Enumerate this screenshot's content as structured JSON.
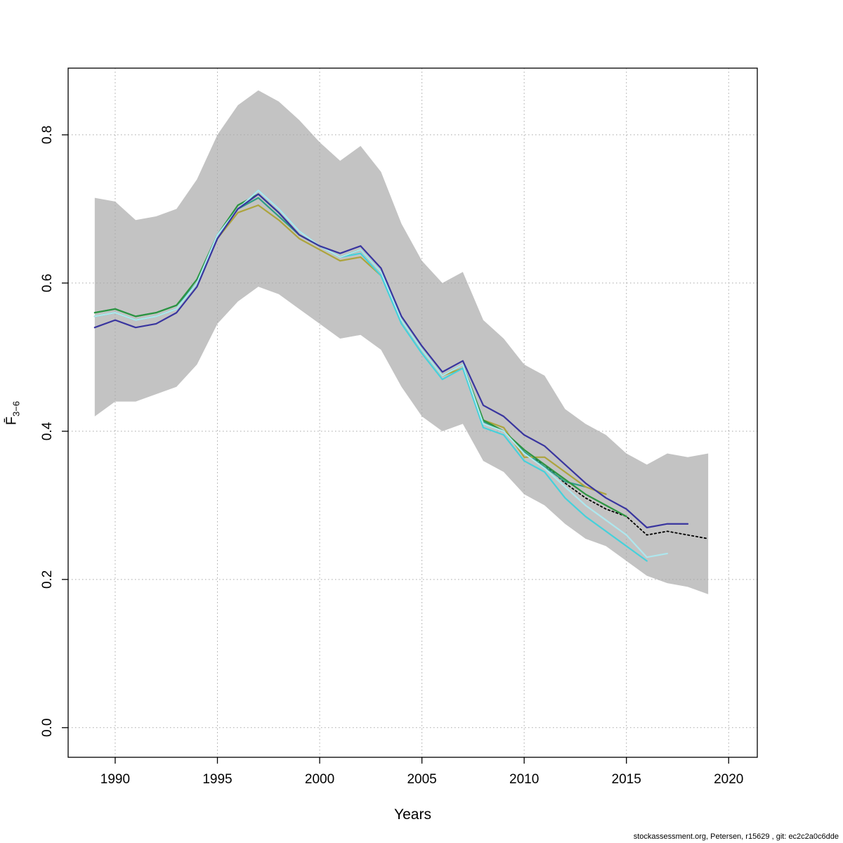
{
  "footer": "stockassessment.org, Petersen, r15629 , git: ec2c2a0c6dde",
  "chart_data": {
    "type": "line",
    "title": "",
    "xlabel": "Years",
    "ylabel_base": "F̄",
    "ylabel_sub": "3−6",
    "xlim": [
      1987.7,
      2021.4
    ],
    "ylim": [
      -0.04,
      0.89
    ],
    "xticks": [
      1990,
      1995,
      2000,
      2005,
      2010,
      2015,
      2020
    ],
    "yticks": [
      0.0,
      0.2,
      0.4,
      0.6,
      0.8
    ],
    "ytick_labels": [
      "0.0",
      "0.2",
      "0.4",
      "0.6",
      "0.8"
    ],
    "grid": true,
    "grid_color": "#a8a8a8",
    "band": {
      "name": "confidence-band",
      "color": "#c3c3c3",
      "start_year": 1989,
      "lower": [
        0.42,
        0.44,
        0.44,
        0.45,
        0.46,
        0.49,
        0.545,
        0.575,
        0.595,
        0.585,
        0.565,
        0.545,
        0.525,
        0.53,
        0.51,
        0.46,
        0.42,
        0.4,
        0.41,
        0.36,
        0.345,
        0.315,
        0.3,
        0.275,
        0.255,
        0.245,
        0.225,
        0.205,
        0.195,
        0.19,
        0.18
      ],
      "upper": [
        0.715,
        0.71,
        0.685,
        0.69,
        0.7,
        0.74,
        0.8,
        0.84,
        0.86,
        0.845,
        0.82,
        0.79,
        0.765,
        0.785,
        0.75,
        0.68,
        0.63,
        0.6,
        0.615,
        0.55,
        0.525,
        0.49,
        0.475,
        0.43,
        0.41,
        0.395,
        0.37,
        0.355,
        0.37,
        0.365,
        0.37
      ]
    },
    "series": [
      {
        "name": "base-run-2019",
        "color": "#000000",
        "style": "dotted",
        "start_year": 1989,
        "values": [
          0.555,
          0.56,
          0.55,
          0.555,
          0.565,
          0.6,
          0.665,
          0.7,
          0.72,
          0.695,
          0.665,
          0.65,
          0.635,
          0.645,
          0.615,
          0.55,
          0.51,
          0.475,
          0.49,
          0.41,
          0.4,
          0.37,
          0.355,
          0.33,
          0.31,
          0.295,
          0.285,
          0.26,
          0.265,
          0.26,
          0.255
        ]
      },
      {
        "name": "retro-peel-2013",
        "color": "#2f9d87",
        "style": "solid",
        "start_year": 1989,
        "values": [
          0.56,
          0.565,
          0.555,
          0.56,
          0.57,
          0.6,
          0.665,
          0.7,
          0.715,
          0.69,
          0.665,
          0.65,
          0.635,
          0.645,
          0.615,
          0.55,
          0.51,
          0.475,
          0.49,
          0.413,
          0.4,
          0.372,
          0.352,
          0.332,
          0.325
        ]
      },
      {
        "name": "retro-peel-2014",
        "color": "#ada43c",
        "style": "solid",
        "start_year": 1989,
        "values": [
          0.555,
          0.56,
          0.55,
          0.555,
          0.565,
          0.6,
          0.66,
          0.695,
          0.705,
          0.685,
          0.66,
          0.645,
          0.63,
          0.635,
          0.61,
          0.55,
          0.51,
          0.475,
          0.485,
          0.415,
          0.405,
          0.365,
          0.365,
          0.345,
          0.325,
          0.315
        ]
      },
      {
        "name": "retro-peel-2015",
        "color": "#2c9440",
        "style": "solid",
        "start_year": 1989,
        "values": [
          0.56,
          0.565,
          0.555,
          0.56,
          0.57,
          0.605,
          0.665,
          0.705,
          0.72,
          0.695,
          0.665,
          0.65,
          0.635,
          0.645,
          0.615,
          0.55,
          0.51,
          0.475,
          0.49,
          0.415,
          0.4,
          0.375,
          0.355,
          0.335,
          0.315,
          0.3,
          0.285
        ]
      },
      {
        "name": "retro-peel-2016",
        "color": "#45d1db",
        "style": "solid",
        "start_year": 1989,
        "values": [
          0.555,
          0.56,
          0.55,
          0.555,
          0.565,
          0.6,
          0.665,
          0.7,
          0.725,
          0.7,
          0.67,
          0.65,
          0.635,
          0.64,
          0.61,
          0.545,
          0.505,
          0.47,
          0.485,
          0.405,
          0.395,
          0.36,
          0.345,
          0.31,
          0.285,
          0.265,
          0.245,
          0.225
        ]
      },
      {
        "name": "retro-peel-2017",
        "color": "#aee7ee",
        "style": "solid",
        "start_year": 1989,
        "values": [
          0.555,
          0.56,
          0.55,
          0.555,
          0.565,
          0.6,
          0.665,
          0.7,
          0.725,
          0.7,
          0.67,
          0.65,
          0.635,
          0.645,
          0.615,
          0.55,
          0.51,
          0.475,
          0.49,
          0.41,
          0.4,
          0.37,
          0.35,
          0.325,
          0.3,
          0.28,
          0.26,
          0.23,
          0.235
        ]
      },
      {
        "name": "retro-peel-2018",
        "color": "#39359f",
        "style": "solid",
        "start_year": 1989,
        "values": [
          0.54,
          0.55,
          0.54,
          0.545,
          0.56,
          0.595,
          0.66,
          0.7,
          0.72,
          0.695,
          0.665,
          0.65,
          0.64,
          0.65,
          0.62,
          0.555,
          0.515,
          0.48,
          0.495,
          0.435,
          0.42,
          0.395,
          0.38,
          0.355,
          0.33,
          0.31,
          0.295,
          0.27,
          0.275,
          0.275
        ]
      }
    ]
  }
}
